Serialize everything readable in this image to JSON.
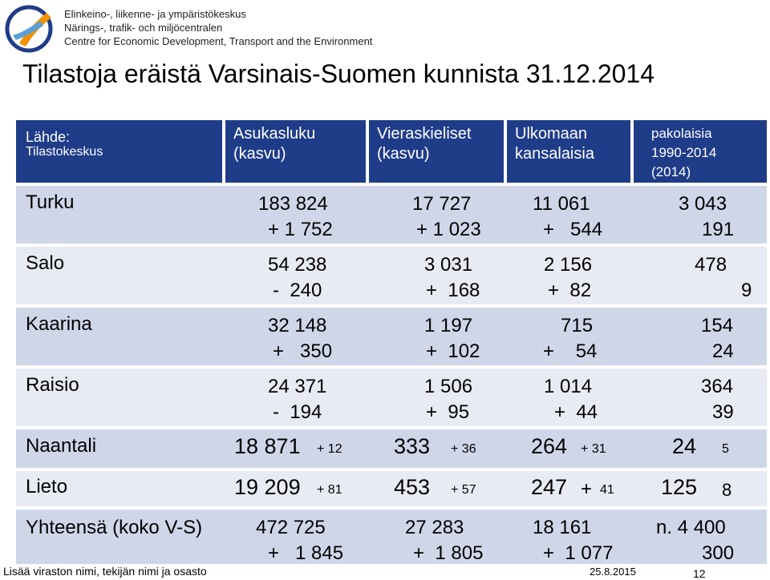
{
  "header": {
    "org_lines": [
      "Elinkeino-, liikenne- ja ympäristökeskus",
      "Närings-, trafik- och miljöcentralen",
      "Centre for Economic Development, Transport and the Environment"
    ],
    "title": "Tilastoja eräistä Varsinais-Suomen kunnista 31.12.2014"
  },
  "table": {
    "source": {
      "line1": "Lähde:",
      "line2": "Tilastokeskus"
    },
    "columns": [
      {
        "line1": "Asukasluku",
        "line2": "(kasvu)"
      },
      {
        "line1": "Vieraskieliset",
        "line2": "(kasvu)"
      },
      {
        "line1": "Ulkomaan",
        "line2": "kansalaisia"
      },
      {
        "line1": "pakolaisia",
        "line2": "1990-2014",
        "line3": "(2014)"
      }
    ],
    "rows": [
      {
        "name": "Turku",
        "pop": "183 824",
        "pop_growth": "+ 1 752",
        "foreign_lang": "17 727",
        "foreign_lang_growth": "+ 1 023",
        "foreign_citizens": "11 061",
        "foreign_citizens_growth": "+   544",
        "refugees": "3 043",
        "refugees_2014": "191"
      },
      {
        "name": "Salo",
        "pop": "54 238",
        "pop_growth": "-  240",
        "foreign_lang": "3 031",
        "foreign_lang_growth": "+  168",
        "foreign_citizens": "2 156",
        "foreign_citizens_growth": "+  82",
        "refugees": "478",
        "refugees_2014": "9"
      },
      {
        "name": "Kaarina",
        "pop": "32 148",
        "pop_growth": "+   350",
        "foreign_lang": "1 197",
        "foreign_lang_growth": "+  102",
        "foreign_citizens": "715",
        "foreign_citizens_growth": "+    54",
        "refugees": "154",
        "refugees_2014": "24"
      },
      {
        "name": "Raisio",
        "pop": "24 371",
        "pop_growth": "-  194",
        "foreign_lang": "1 506",
        "foreign_lang_growth": "+  95",
        "foreign_citizens": "1 014",
        "foreign_citizens_growth": "+  44",
        "refugees": "364",
        "refugees_2014": "39"
      }
    ],
    "inline_rows": [
      {
        "name": "Naantali",
        "pop": "18 871",
        "pop_growth": "+ 12",
        "foreign_lang": "333",
        "foreign_lang_growth": "+ 36",
        "foreign_citizens": "264",
        "foreign_citizens_growth": "+ 31",
        "refugees": "24",
        "refugees_2014": "5"
      },
      {
        "name": "Lieto",
        "pop": "19 209",
        "pop_growth": "+ 81",
        "foreign_lang": "453",
        "foreign_lang_growth": "+ 57",
        "foreign_citizens": "247",
        "foreign_citizens_plus": "+",
        "foreign_citizens_growth": "41",
        "refugees": "125",
        "refugees_2014": "8"
      }
    ],
    "total": {
      "name": "Yhteensä (koko V-S)",
      "pop": "472 725",
      "pop_growth": "+   1 845",
      "foreign_lang": "27 283",
      "foreign_lang_growth": "+  1 805",
      "foreign_citizens": "18 161",
      "foreign_citizens_growth": "+  1 077",
      "refugees": "n. 4 400",
      "refugees_2014": "300"
    }
  },
  "footer": {
    "left": "Lisää viraston nimi, tekijän nimi ja osasto",
    "date": "25.8.2015",
    "page": "12"
  },
  "colors": {
    "header_bg": "#1f3c88",
    "band_dark": "#cfd6e8",
    "band_light": "#e8ebf3"
  }
}
